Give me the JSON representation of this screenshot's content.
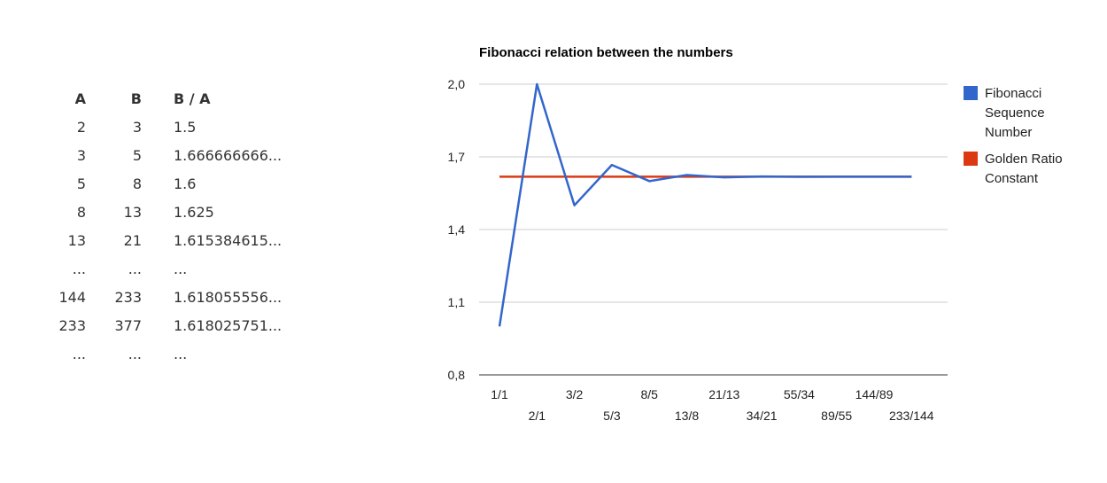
{
  "table": {
    "headers": [
      "A",
      "B",
      "B / A"
    ],
    "rows": [
      [
        "2",
        "3",
        "1.5"
      ],
      [
        "3",
        "5",
        "1.666666666..."
      ],
      [
        "5",
        "8",
        "1.6"
      ],
      [
        "8",
        "13",
        "1.625"
      ],
      [
        "13",
        "21",
        "1.615384615..."
      ],
      [
        "...",
        "...",
        "..."
      ],
      [
        "144",
        "233",
        "1.618055556..."
      ],
      [
        "233",
        "377",
        "1.618025751..."
      ],
      [
        "...",
        "...",
        "..."
      ]
    ]
  },
  "chart_data": {
    "type": "line",
    "title": "Fibonacci relation between the numbers",
    "xlabel": "",
    "ylabel": "",
    "categories": [
      "1/1",
      "2/1",
      "3/2",
      "5/3",
      "8/5",
      "13/8",
      "21/13",
      "34/21",
      "55/34",
      "89/55",
      "144/89",
      "233/144"
    ],
    "series": [
      {
        "name": "Fibonacci Sequence Number",
        "color": "#3366cc",
        "values": [
          1.0,
          2.0,
          1.5,
          1.6667,
          1.6,
          1.625,
          1.6154,
          1.619,
          1.6176,
          1.6182,
          1.618,
          1.6181
        ]
      },
      {
        "name": "Golden Ratio Constant",
        "color": "#dc3912",
        "values": [
          1.618,
          1.618,
          1.618,
          1.618,
          1.618,
          1.618,
          1.618,
          1.618,
          1.618,
          1.618,
          1.618,
          1.618
        ]
      }
    ],
    "ylim": [
      0.8,
      2.0
    ],
    "yticks": [
      "0,8",
      "1,1",
      "1,4",
      "1,7",
      "2,0"
    ],
    "grid": true,
    "legend_position": "right"
  }
}
